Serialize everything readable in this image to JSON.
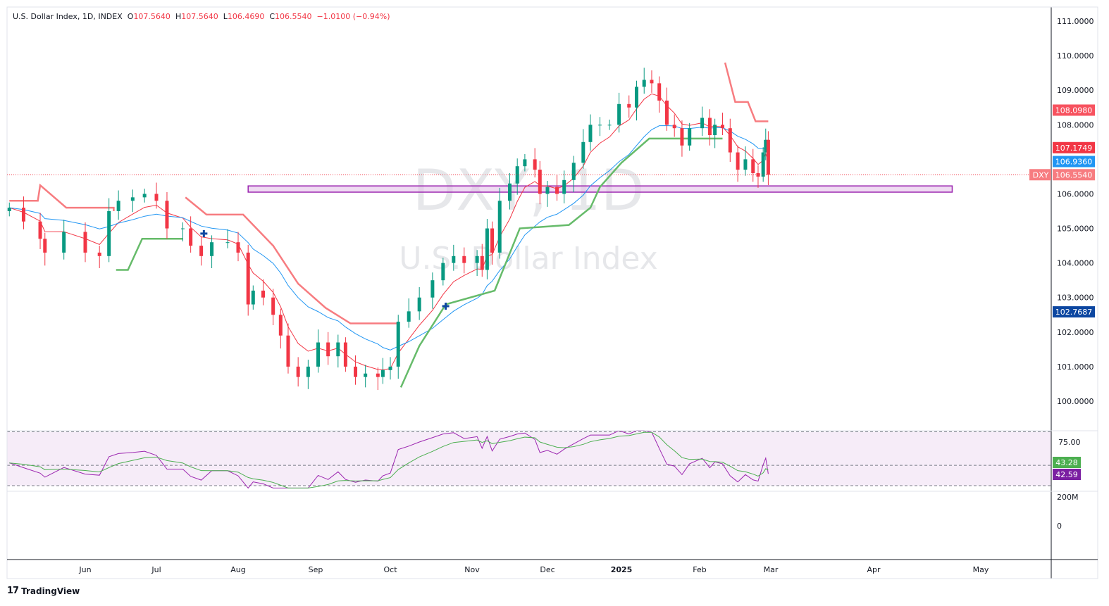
{
  "header": {
    "symbol": "U.S. Dollar Index, 1D, INDEX",
    "o_label": "O",
    "o": "107.5640",
    "h_label": "H",
    "h": "107.5640",
    "l_label": "L",
    "l": "106.4690",
    "c_label": "C",
    "c": "106.5540",
    "change": "−1.0100 (−0.94%)"
  },
  "watermark": {
    "line1": "DXY, 1D",
    "line2": "U.S. Dollar Index"
  },
  "branding": {
    "name": "TradingView"
  },
  "colors": {
    "up": "#089981",
    "down": "#f23645",
    "ema_fast": "#f23645",
    "ma_slow": "#2196f3",
    "stop_up": "#f77c80",
    "stop_down": "#66bb6a",
    "zone": "#9c27b0",
    "rsi": "#9c27b0",
    "rsi_ma": "#4caf50"
  },
  "chart_data": {
    "type": "candlestick",
    "ylim": [
      99.5,
      111.3
    ],
    "price_ticks": [
      "111.0000",
      "110.0000",
      "109.0000",
      "108.0000",
      "106.0000",
      "105.0000",
      "104.0000",
      "103.0000",
      "102.0000",
      "101.0000",
      "100.0000"
    ],
    "price_tick_values": [
      111,
      110,
      109,
      108,
      106,
      105,
      104,
      103,
      102,
      101,
      100
    ],
    "xaxis": {
      "ticks": [
        {
          "label": "Jun",
          "date": "2024-06-01"
        },
        {
          "label": "Jul",
          "date": "2024-07-01"
        },
        {
          "label": "Aug",
          "date": "2024-08-01"
        },
        {
          "label": "Sep",
          "date": "2024-09-01"
        },
        {
          "label": "Oct",
          "date": "2024-10-01"
        },
        {
          "label": "Nov",
          "date": "2024-11-01"
        },
        {
          "label": "Dec",
          "date": "2024-12-01"
        },
        {
          "label": "2025",
          "date": "2025-01-01"
        },
        {
          "label": "Feb",
          "date": "2025-02-01"
        },
        {
          "label": "Mar",
          "date": "2025-03-01"
        },
        {
          "label": "Apr",
          "date": "2025-04-01"
        },
        {
          "label": "May",
          "date": "2025-05-01"
        }
      ]
    },
    "closes": [
      [
        "2024-04-30",
        105.6
      ],
      [
        "2024-05-06",
        105.2
      ],
      [
        "2024-05-13",
        104.7
      ],
      [
        "2024-05-15",
        104.3
      ],
      [
        "2024-05-23",
        104.9
      ],
      [
        "2024-06-01",
        104.3
      ],
      [
        "2024-06-07",
        104.2
      ],
      [
        "2024-06-11",
        105.5
      ],
      [
        "2024-06-15",
        105.8
      ],
      [
        "2024-06-21",
        105.9
      ],
      [
        "2024-06-26",
        106.0
      ],
      [
        "2024-07-01",
        105.8
      ],
      [
        "2024-07-05",
        105.0
      ],
      [
        "2024-07-11",
        105.0
      ],
      [
        "2024-07-14",
        104.5
      ],
      [
        "2024-07-18",
        104.2
      ],
      [
        "2024-07-22",
        104.6
      ],
      [
        "2024-07-28",
        104.6
      ],
      [
        "2024-08-01",
        104.3
      ],
      [
        "2024-08-05",
        102.8
      ],
      [
        "2024-08-07",
        103.2
      ],
      [
        "2024-08-11",
        103.0
      ],
      [
        "2024-08-15",
        102.5
      ],
      [
        "2024-08-18",
        101.9
      ],
      [
        "2024-08-21",
        101.0
      ],
      [
        "2024-08-25",
        100.7
      ],
      [
        "2024-08-29",
        101.0
      ],
      [
        "2024-09-02",
        101.7
      ],
      [
        "2024-09-06",
        101.3
      ],
      [
        "2024-09-10",
        101.7
      ],
      [
        "2024-09-13",
        101.0
      ],
      [
        "2024-09-17",
        100.7
      ],
      [
        "2024-09-21",
        100.8
      ],
      [
        "2024-09-26",
        100.7
      ],
      [
        "2024-09-28",
        100.9
      ],
      [
        "2024-10-01",
        101.0
      ],
      [
        "2024-10-04",
        102.3
      ],
      [
        "2024-10-08",
        102.6
      ],
      [
        "2024-10-12",
        103.0
      ],
      [
        "2024-10-17",
        103.5
      ],
      [
        "2024-10-21",
        104.0
      ],
      [
        "2024-10-25",
        104.2
      ],
      [
        "2024-10-29",
        104.0
      ],
      [
        "2024-11-03",
        104.2
      ],
      [
        "2024-11-05",
        103.8
      ],
      [
        "2024-11-07",
        105.0
      ],
      [
        "2024-11-09",
        104.3
      ],
      [
        "2024-11-12",
        105.8
      ],
      [
        "2024-11-16",
        106.3
      ],
      [
        "2024-11-19",
        106.8
      ],
      [
        "2024-11-22",
        107.0
      ],
      [
        "2024-11-26",
        106.7
      ],
      [
        "2024-11-28",
        106.0
      ],
      [
        "2024-12-01",
        106.2
      ],
      [
        "2024-12-05",
        106.0
      ],
      [
        "2024-12-08",
        106.4
      ],
      [
        "2024-12-12",
        106.9
      ],
      [
        "2024-12-16",
        107.5
      ],
      [
        "2024-12-19",
        108.0
      ],
      [
        "2024-12-23",
        108.0
      ],
      [
        "2024-12-27",
        108.0
      ],
      [
        "2024-12-31",
        108.6
      ],
      [
        "2025-01-04",
        108.5
      ],
      [
        "2025-01-07",
        109.1
      ],
      [
        "2025-01-10",
        109.3
      ],
      [
        "2025-01-13",
        109.2
      ],
      [
        "2025-01-16",
        108.7
      ],
      [
        "2025-01-19",
        108.0
      ],
      [
        "2025-01-22",
        107.9
      ],
      [
        "2025-01-25",
        107.4
      ],
      [
        "2025-01-28",
        107.9
      ],
      [
        "2025-02-02",
        108.2
      ],
      [
        "2025-02-05",
        107.7
      ],
      [
        "2025-02-07",
        108.0
      ],
      [
        "2025-02-10",
        107.9
      ],
      [
        "2025-02-13",
        107.2
      ],
      [
        "2025-02-16",
        106.7
      ],
      [
        "2025-02-19",
        107.0
      ],
      [
        "2025-02-22",
        106.6
      ],
      [
        "2025-02-24",
        106.5
      ],
      [
        "2025-02-26",
        107.2
      ],
      [
        "2025-02-27",
        107.564
      ],
      [
        "2025-02-28",
        106.554
      ]
    ],
    "stop_segments": [
      {
        "side": "up",
        "points": [
          [
            "2024-04-30",
            105.8
          ],
          [
            "2024-05-12",
            105.8
          ],
          [
            "2024-05-13",
            106.25
          ],
          [
            "2024-05-24",
            105.6
          ],
          [
            "2024-06-13",
            105.6
          ],
          [
            "2024-06-13",
            105.5
          ]
        ]
      },
      {
        "side": "down",
        "points": [
          [
            "2024-06-14",
            103.8
          ],
          [
            "2024-06-19",
            103.8
          ],
          [
            "2024-06-25",
            104.7
          ],
          [
            "2024-07-11",
            104.7
          ]
        ]
      },
      {
        "side": "up",
        "points": [
          [
            "2024-07-12",
            105.9
          ],
          [
            "2024-07-20",
            105.4
          ],
          [
            "2024-08-03",
            105.4
          ],
          [
            "2024-08-15",
            104.5
          ],
          [
            "2024-08-25",
            103.4
          ],
          [
            "2024-09-05",
            102.7
          ],
          [
            "2024-09-15",
            102.25
          ],
          [
            "2024-10-04",
            102.25
          ]
        ]
      },
      {
        "side": "down",
        "points": [
          [
            "2024-10-05",
            100.4
          ],
          [
            "2024-10-12",
            101.6
          ],
          [
            "2024-10-22",
            102.8
          ],
          [
            "2024-11-10",
            103.2
          ],
          [
            "2024-11-20",
            105.0
          ],
          [
            "2024-12-10",
            105.1
          ],
          [
            "2024-12-19",
            105.6
          ],
          [
            "2024-12-23",
            106.2
          ],
          [
            "2025-01-01",
            106.9
          ],
          [
            "2025-01-12",
            107.6
          ],
          [
            "2025-02-10",
            107.6
          ]
        ]
      },
      {
        "side": "up",
        "points": [
          [
            "2025-02-11",
            109.8
          ],
          [
            "2025-02-15",
            108.66
          ],
          [
            "2025-02-20",
            108.66
          ],
          [
            "2025-02-23",
            108.1
          ],
          [
            "2025-02-28",
            108.1
          ]
        ]
      }
    ],
    "zone": {
      "start": "2024-08-05",
      "end": "2025-04-23",
      "top": 106.23,
      "bottom": 106.05
    },
    "markers": [
      [
        "2024-07-19",
        104.85
      ],
      [
        "2024-10-22",
        102.75
      ]
    ],
    "last_price_badges": [
      {
        "value": "108.0980",
        "color": "#f7525f"
      },
      {
        "value": "107.1749",
        "color": "#f23645"
      },
      {
        "value": "106.9360",
        "color": "#2196f3"
      },
      {
        "value": "106.5540",
        "color": "#f77c80",
        "tag": "DXY"
      },
      {
        "value": "102.7687",
        "color": "#0d47a1"
      }
    ],
    "rsi": {
      "levels": [
        70,
        50,
        30
      ],
      "scale_label": "75.00",
      "value": "42.59",
      "ma_value": "43.28"
    },
    "volume": {
      "ticks": [
        "200M",
        "0"
      ]
    }
  }
}
